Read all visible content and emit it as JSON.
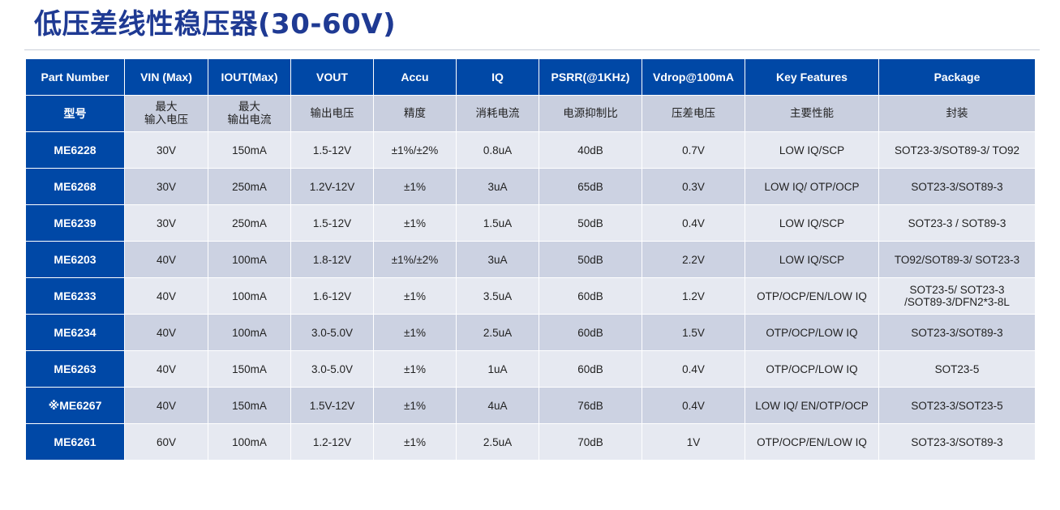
{
  "page": {
    "title": "低压差线性稳压器(30-60V)"
  },
  "table": {
    "headers": [
      "Part Number",
      "VIN (Max)",
      "IOUT(Max)",
      "VOUT",
      "Accu",
      "IQ",
      "PSRR(@1KHz)",
      "Vdrop@100mA",
      "Key Features",
      "Package"
    ],
    "cn_headers": [
      "型号",
      "最大\n输入电压",
      "最大\n输出电流",
      "输出电压",
      "精度",
      "消耗电流",
      "电源抑制比",
      "压差电压",
      "主要性能",
      "封装"
    ],
    "rows": [
      [
        "ME6228",
        "30V",
        "150mA",
        "1.5-12V",
        "±1%/±2%",
        "0.8uA",
        "40dB",
        "0.7V",
        "LOW IQ/SCP",
        "SOT23-3/SOT89-3/ TO92"
      ],
      [
        "ME6268",
        "30V",
        "250mA",
        "1.2V-12V",
        "±1%",
        "3uA",
        "65dB",
        "0.3V",
        "LOW IQ/ OTP/OCP",
        "SOT23-3/SOT89-3"
      ],
      [
        "ME6239",
        "30V",
        "250mA",
        "1.5-12V",
        "±1%",
        "1.5uA",
        "50dB",
        "0.4V",
        "LOW IQ/SCP",
        "SOT23-3 / SOT89-3"
      ],
      [
        "ME6203",
        "40V",
        "100mA",
        "1.8-12V",
        "±1%/±2%",
        "3uA",
        "50dB",
        "2.2V",
        "LOW IQ/SCP",
        "TO92/SOT89-3/ SOT23-3"
      ],
      [
        "ME6233",
        "40V",
        "100mA",
        "1.6-12V",
        "±1%",
        "3.5uA",
        "60dB",
        "1.2V",
        "OTP/OCP/EN/LOW IQ",
        "SOT23-5/ SOT23-3\n/SOT89-3/DFN2*3-8L"
      ],
      [
        "ME6234",
        "40V",
        "100mA",
        "3.0-5.0V",
        "±1%",
        "2.5uA",
        "60dB",
        "1.5V",
        "OTP/OCP/LOW IQ",
        "SOT23-3/SOT89-3"
      ],
      [
        "ME6263",
        "40V",
        "150mA",
        "3.0-5.0V",
        "±1%",
        "1uA",
        "60dB",
        "0.4V",
        "OTP/OCP/LOW IQ",
        "SOT23-5"
      ],
      [
        "※ME6267",
        "40V",
        "150mA",
        "1.5V-12V",
        "±1%",
        "4uA",
        "76dB",
        "0.4V",
        "LOW IQ/ EN/OTP/OCP",
        "SOT23-3/SOT23-5"
      ],
      [
        "ME6261",
        "60V",
        "100mA",
        "1.2-12V",
        "±1%",
        "2.5uA",
        "70dB",
        "1V",
        "OTP/OCP/EN/LOW IQ",
        "SOT23-3/SOT89-3"
      ]
    ]
  },
  "colors": {
    "title": "#1f3a93",
    "header_bg": "#0048a6",
    "row_light": "#e6e9f1",
    "row_dark": "#ccd2e2"
  }
}
